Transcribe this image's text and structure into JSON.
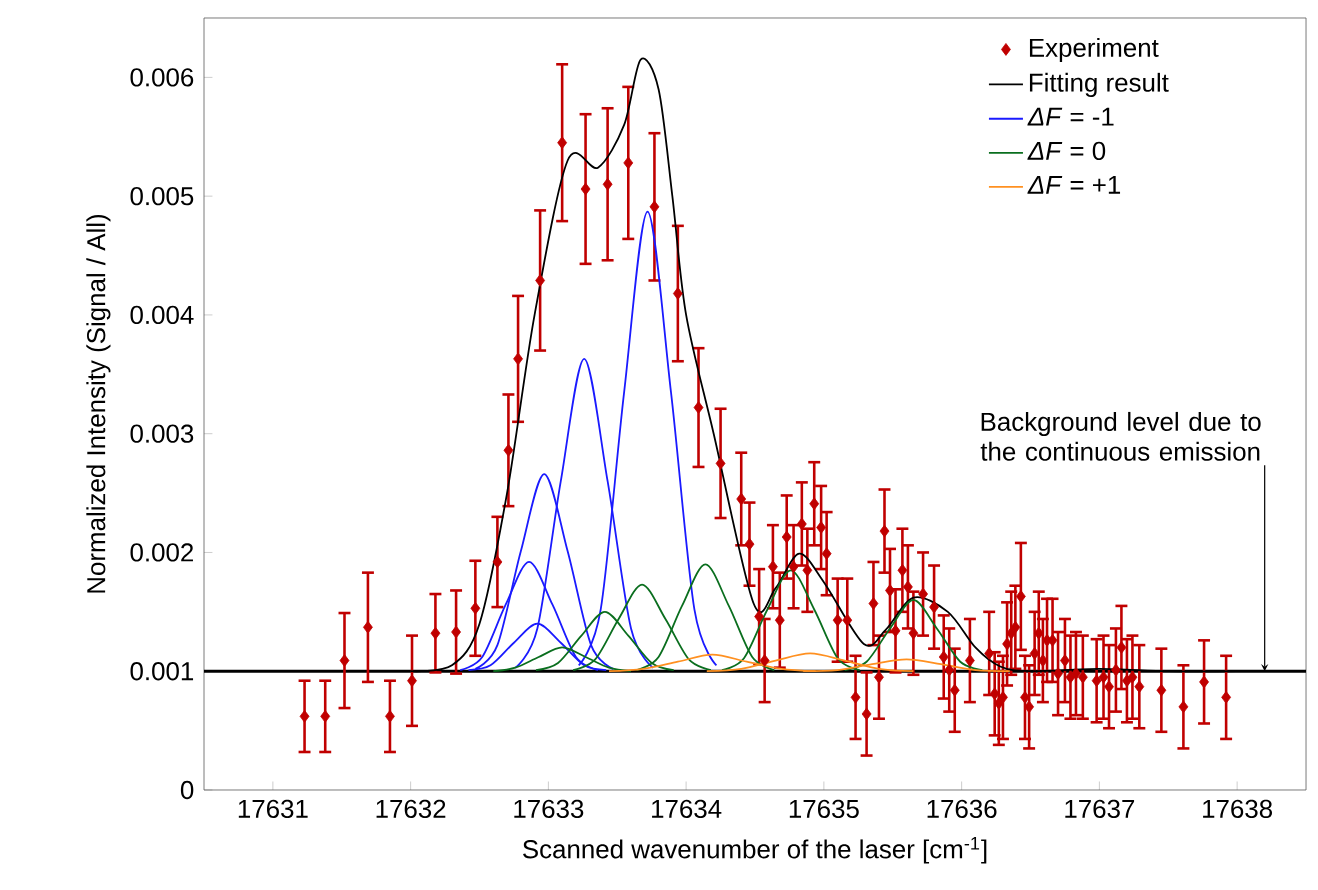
{
  "chart_data": {
    "type": "line",
    "xlabel": "Scanned wavenumber of the laser [cm$^{-1}$]",
    "ylabel": "Normalized Intensity (Signal / All)",
    "xlim": [
      17630.5,
      17638.5
    ],
    "ylim": [
      0,
      0.0065
    ],
    "xticks": [
      17631,
      17632,
      17633,
      17634,
      17635,
      17636,
      17637,
      17638
    ],
    "yticks": [
      0,
      0.001,
      0.002,
      0.003,
      0.004,
      0.005,
      0.006
    ],
    "legend": "top right",
    "ref_lines": [
      {
        "axis": "y",
        "value": 0.001,
        "color": "#000000"
      }
    ],
    "annotations": [
      {
        "text": "Background level due to the continuous emission",
        "x": 17638.2,
        "y": 0.001
      }
    ],
    "series": [
      {
        "name": "Experiment",
        "type": "scatter",
        "marker": "diamond",
        "color": "#c00000",
        "x": [
          17631.23,
          17631.38,
          17631.52,
          17631.69,
          17631.85,
          17632.01,
          17632.18,
          17632.33,
          17632.47,
          17632.63,
          17632.71,
          17632.78,
          17632.94,
          17633.1,
          17633.27,
          17633.43,
          17633.58,
          17633.77,
          17633.94,
          17634.09,
          17634.25,
          17634.4,
          17634.46,
          17634.53,
          17634.57,
          17634.63,
          17634.68,
          17634.73,
          17634.78,
          17634.84,
          17634.88,
          17634.93,
          17634.98,
          17635.02,
          17635.1,
          17635.17,
          17635.23,
          17635.31,
          17635.36,
          17635.4,
          17635.44,
          17635.48,
          17635.52,
          17635.57,
          17635.61,
          17635.65,
          17635.72,
          17635.8,
          17635.87,
          17635.91,
          17635.95,
          17636.06,
          17636.2,
          17636.24,
          17636.27,
          17636.3,
          17636.33,
          17636.36,
          17636.39,
          17636.43,
          17636.46,
          17636.49,
          17636.53,
          17636.56,
          17636.59,
          17636.62,
          17636.66,
          17636.7,
          17636.75,
          17636.79,
          17636.83,
          17636.88,
          17636.98,
          17637.03,
          17637.07,
          17637.12,
          17637.16,
          17637.2,
          17637.24,
          17637.29,
          17637.45,
          17637.61,
          17637.76,
          17637.92
        ],
        "values": [
          0.00062,
          0.00062,
          0.00109,
          0.00137,
          0.00062,
          0.00092,
          0.00132,
          0.00133,
          0.00153,
          0.00192,
          0.00286,
          0.00363,
          0.00429,
          0.00545,
          0.00506,
          0.0051,
          0.00528,
          0.00491,
          0.00418,
          0.00322,
          0.00275,
          0.00245,
          0.00207,
          0.00146,
          0.00109,
          0.00188,
          0.00143,
          0.00213,
          0.00188,
          0.00224,
          0.00185,
          0.00241,
          0.00221,
          0.00199,
          0.00143,
          0.00143,
          0.00078,
          0.00064,
          0.00157,
          0.00095,
          0.00218,
          0.00168,
          0.00134,
          0.00185,
          0.00171,
          0.00132,
          0.00165,
          0.00154,
          0.00112,
          0.00101,
          0.00084,
          0.00109,
          0.00115,
          0.00081,
          0.00073,
          0.00078,
          0.00123,
          0.00132,
          0.00137,
          0.00163,
          0.00078,
          0.0007,
          0.00115,
          0.00132,
          0.00109,
          0.00126,
          0.00126,
          0.00098,
          0.00109,
          0.00095,
          0.00098,
          0.00095,
          0.00092,
          0.00095,
          0.00087,
          0.00101,
          0.0012,
          0.00092,
          0.00095,
          0.00087,
          0.00084,
          0.0007,
          0.00091,
          0.00078
        ],
        "errors": [
          0.0003,
          0.0003,
          0.0004,
          0.00046,
          0.0003,
          0.00038,
          0.00033,
          0.00035,
          0.0004,
          0.00038,
          0.00047,
          0.00053,
          0.00059,
          0.00066,
          0.00063,
          0.00064,
          0.00064,
          0.00062,
          0.00057,
          0.0005,
          0.00046,
          0.00039,
          0.00035,
          0.0004,
          0.00035,
          0.00035,
          0.0004,
          0.00035,
          0.00035,
          0.00035,
          0.00035,
          0.00035,
          0.00035,
          0.00035,
          0.00035,
          0.00035,
          0.00035,
          0.00035,
          0.00035,
          0.00035,
          0.00035,
          0.00035,
          0.00035,
          0.00035,
          0.00035,
          0.00035,
          0.00035,
          0.00035,
          0.00035,
          0.00035,
          0.00035,
          0.00035,
          0.00035,
          0.00035,
          0.00035,
          0.00035,
          0.00035,
          0.00035,
          0.00035,
          0.00045,
          0.00035,
          0.00035,
          0.00035,
          0.00035,
          0.00035,
          0.00035,
          0.00035,
          0.00035,
          0.00035,
          0.00035,
          0.00035,
          0.00035,
          0.00035,
          0.00035,
          0.00035,
          0.00035,
          0.00035,
          0.00035,
          0.00035,
          0.00035,
          0.00035,
          0.00035,
          0.00035,
          0.00035
        ]
      },
      {
        "name": "Fitting result",
        "color": "#000000",
        "x": [
          17632.0,
          17632.3,
          17632.5,
          17632.7,
          17632.9,
          17633.14,
          17633.36,
          17633.55,
          17633.67,
          17633.8,
          17633.9,
          17634.0,
          17634.2,
          17634.49,
          17634.65,
          17634.82,
          17635.0,
          17635.29,
          17635.45,
          17635.65,
          17635.9,
          17636.1,
          17636.28,
          17636.5,
          17637.0,
          17637.5,
          17638.0
        ],
        "values": [
          0.001,
          0.00105,
          0.0014,
          0.0025,
          0.004,
          0.0053,
          0.00524,
          0.0056,
          0.00615,
          0.0059,
          0.005,
          0.004,
          0.003,
          0.00157,
          0.0017,
          0.00199,
          0.00175,
          0.00123,
          0.00135,
          0.00162,
          0.0015,
          0.0012,
          0.00104,
          0.001,
          0.00102,
          0.001,
          0.001
        ]
      },
      {
        "name": "*ΔF* = -1",
        "color": "#1a1aff",
        "x": [
          17632.36,
          17632.52,
          17632.69,
          17632.86,
          17633.03,
          17633.2,
          17633.36
        ],
        "values": [
          0.00101,
          0.00112,
          0.00156,
          0.00192,
          0.00156,
          0.00112,
          0.00101
        ]
      },
      {
        "color": "#1a1aff",
        "x": [
          17632.42,
          17632.58,
          17632.75,
          17632.92,
          17633.09,
          17633.26,
          17633.42
        ],
        "values": [
          0.00101,
          0.00105,
          0.00124,
          0.0014,
          0.00124,
          0.00105,
          0.00101
        ]
      },
      {
        "color": "#1a1aff",
        "x": [
          17632.47,
          17632.63,
          17632.8,
          17632.97,
          17633.14,
          17633.31,
          17633.47
        ],
        "values": [
          0.00102,
          0.00122,
          0.00201,
          0.00266,
          0.00201,
          0.00122,
          0.00102
        ]
      },
      {
        "color": "#1a1aff",
        "x": [
          17632.76,
          17632.92,
          17633.09,
          17633.26,
          17633.43,
          17633.6,
          17633.76
        ],
        "values": [
          0.00103,
          0.00136,
          0.0026,
          0.00363,
          0.0026,
          0.00136,
          0.00103
        ]
      },
      {
        "color": "#1a1aff",
        "x": [
          17633.22,
          17633.38,
          17633.55,
          17633.72,
          17633.89,
          17634.06,
          17634.22
        ],
        "values": [
          0.00105,
          0.00152,
          0.00335,
          0.00487,
          0.00335,
          0.00152,
          0.00105
        ]
      },
      {
        "name": "*ΔF* = 0",
        "color": "#0a6e1e",
        "x": [
          17632.6,
          17632.76,
          17632.93,
          17633.1,
          17633.27,
          17633.44,
          17633.6
        ],
        "values": [
          0.001,
          0.00103,
          0.00112,
          0.0012,
          0.00112,
          0.00103,
          0.001
        ]
      },
      {
        "color": "#0a6e1e",
        "x": [
          17632.91,
          17633.07,
          17633.24,
          17633.41,
          17633.58,
          17633.75,
          17633.91
        ],
        "values": [
          0.00101,
          0.00107,
          0.0013,
          0.0015,
          0.0013,
          0.00107,
          0.00101
        ]
      },
      {
        "color": "#0a6e1e",
        "x": [
          17633.18,
          17633.34,
          17633.51,
          17633.68,
          17633.85,
          17634.02,
          17634.18
        ],
        "values": [
          0.00101,
          0.0011,
          0.00144,
          0.00173,
          0.00144,
          0.0011,
          0.00101
        ]
      },
      {
        "color": "#0a6e1e",
        "x": [
          17633.64,
          17633.8,
          17633.97,
          17634.14,
          17634.31,
          17634.48,
          17634.64
        ],
        "values": [
          0.00101,
          0.00112,
          0.00155,
          0.0019,
          0.00155,
          0.00112,
          0.00101
        ]
      },
      {
        "color": "#0a6e1e",
        "x": [
          17634.26,
          17634.42,
          17634.59,
          17634.76,
          17634.93,
          17635.1,
          17635.26
        ],
        "values": [
          0.00101,
          0.00111,
          0.00152,
          0.00185,
          0.00152,
          0.00111,
          0.00101
        ]
      },
      {
        "color": "#0a6e1e",
        "x": [
          17635.15,
          17635.31,
          17635.48,
          17635.65,
          17635.82,
          17635.99,
          17636.15
        ],
        "values": [
          0.00101,
          0.00108,
          0.00136,
          0.0016,
          0.00136,
          0.00108,
          0.00101
        ]
      },
      {
        "name": "*ΔF* = +1",
        "color": "#ff9020",
        "x": [
          17633.44,
          17633.69,
          17633.94,
          17634.19,
          17634.44,
          17634.69,
          17634.94
        ],
        "values": [
          0.001,
          0.00102,
          0.00108,
          0.00114,
          0.00108,
          0.00102,
          0.001
        ]
      },
      {
        "color": "#ff9020",
        "x": [
          17634.15,
          17634.4,
          17634.65,
          17634.9,
          17635.15,
          17635.4,
          17635.65
        ],
        "values": [
          0.001,
          0.00102,
          0.00109,
          0.00115,
          0.00109,
          0.00102,
          0.001
        ]
      },
      {
        "color": "#ff9020",
        "x": [
          17634.85,
          17635.1,
          17635.35,
          17635.6,
          17635.85,
          17636.1,
          17636.35
        ],
        "values": [
          0.001,
          0.00101,
          0.00106,
          0.0011,
          0.00106,
          0.00101,
          0.001
        ]
      }
    ]
  }
}
